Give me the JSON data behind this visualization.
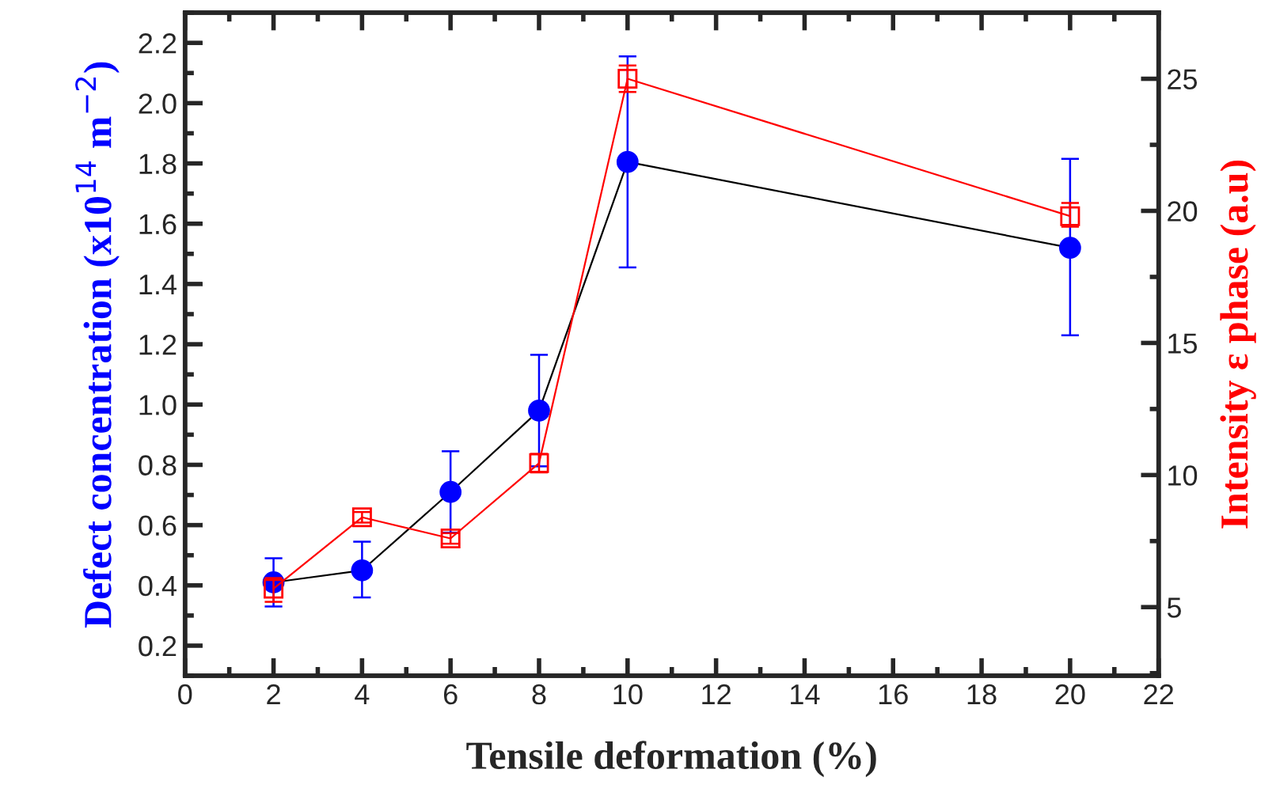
{
  "chart_data": {
    "type": "line",
    "xlabel": "Tensile deformation (%)",
    "ylabel": "Defect concentration (x10$^{14}$ m$^{−2}$)",
    "y2label": "Intensity ε phase (a.u)",
    "x": [
      2,
      4,
      6,
      8,
      10,
      20
    ],
    "series": [
      {
        "color": "#0000ff",
        "marker": "circle",
        "axis": "y",
        "values": [
          0.41,
          0.45,
          0.71,
          0.98,
          1.805,
          1.52
        ],
        "errors": [
          [
            0.33,
            0.49
          ],
          [
            0.36,
            0.545
          ],
          [
            0.575,
            0.845
          ],
          [
            0.795,
            1.165
          ],
          [
            1.455,
            2.155
          ],
          [
            1.23,
            1.815
          ]
        ]
      },
      {
        "color": "#ff0000",
        "marker": "square",
        "axis": "y2",
        "values": [
          5.7,
          8.4,
          7.6,
          10.45,
          25.0,
          19.8
        ],
        "errors": [
          [
            5.2,
            6.1
          ],
          [
            8.2,
            8.6
          ],
          [
            7.4,
            7.8
          ],
          [
            10.1,
            10.8
          ],
          [
            24.5,
            25.5
          ],
          [
            19.4,
            20.3
          ]
        ]
      }
    ],
    "xlim": [
      0,
      22
    ],
    "xticks": [
      0,
      2,
      4,
      6,
      8,
      10,
      12,
      14,
      16,
      18,
      20,
      22
    ],
    "ylim": [
      0.1,
      2.3
    ],
    "yticks": [
      0.2,
      0.4,
      0.6,
      0.8,
      {
        "value": 1,
        "label": "1.0"
      },
      1.2,
      1.4,
      1.6,
      1.8,
      {
        "value": 2,
        "label": "2.0"
      },
      2.2
    ],
    "y2lim": [
      2.4,
      27.5
    ],
    "y2ticks": [
      5,
      10,
      15,
      20,
      25
    ],
    "line_style": "solid",
    "grid": false,
    "legend": false
  }
}
